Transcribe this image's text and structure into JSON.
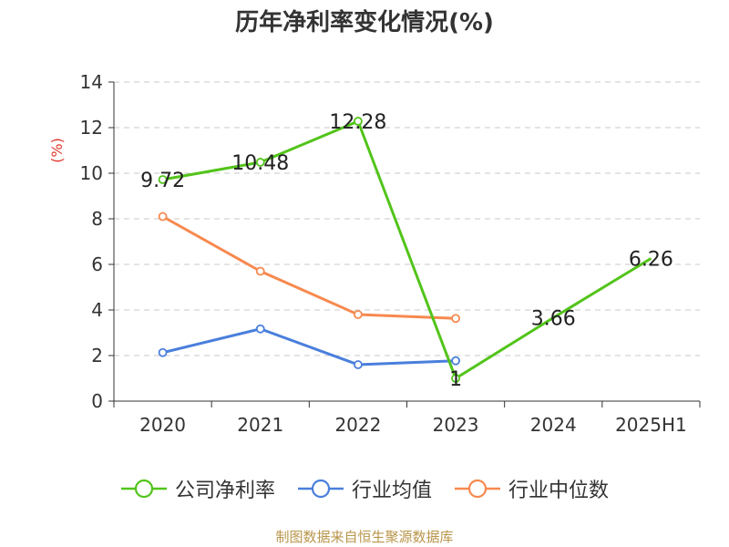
{
  "chart_data": {
    "type": "line",
    "title": "历年净利率变化情况(%)",
    "ylabel": "(%)",
    "xlabel": "",
    "categories": [
      "2020",
      "2021",
      "2022",
      "2023",
      "2024",
      "2025H1"
    ],
    "ylim": [
      0,
      14
    ],
    "yticks": [
      0,
      2,
      4,
      6,
      8,
      10,
      12,
      14
    ],
    "grid": "horizontal-dashed",
    "legend_position": "bottom",
    "series": [
      {
        "name": "公司净利率",
        "color": "#52c41a",
        "values": [
          9.72,
          10.48,
          12.28,
          1,
          3.66,
          6.26
        ],
        "labels": [
          "9.72",
          "10.48",
          "12.28",
          "1",
          "3.66",
          "6.26"
        ],
        "markers": [
          true,
          true,
          true,
          true,
          false,
          false
        ]
      },
      {
        "name": "行业均值",
        "color": "#4a7fdc",
        "values": [
          2.13,
          3.17,
          1.6,
          1.77,
          null,
          null
        ]
      },
      {
        "name": "行业中位数",
        "color": "#f7894f",
        "values": [
          8.1,
          5.7,
          3.8,
          3.63,
          null,
          null
        ]
      }
    ]
  },
  "source": "制图数据来自恒生聚源数据库"
}
